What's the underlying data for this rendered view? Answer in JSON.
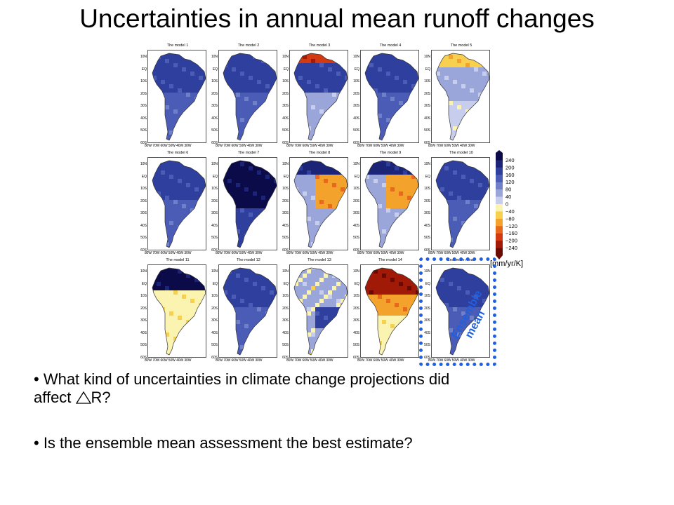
{
  "slide": {
    "title": "Uncertainties in annual mean runoff changes",
    "bullets": [
      "• What kind of uncertainties in climate change projections did affect ",
      "R?",
      "• Is the ensemble mean assessment the best estimate?"
    ]
  },
  "figure": {
    "panels": [
      {
        "title": "The model 1",
        "pattern": "wet"
      },
      {
        "title": "The model 2",
        "pattern": "wet"
      },
      {
        "title": "The model 3",
        "pattern": "mixed-north-dry"
      },
      {
        "title": "The model 4",
        "pattern": "wet"
      },
      {
        "title": "The model 5",
        "pattern": "north-dry"
      },
      {
        "title": "The model 6",
        "pattern": "wet"
      },
      {
        "title": "The model 7",
        "pattern": "very-wet"
      },
      {
        "title": "The model 8",
        "pattern": "center-dry"
      },
      {
        "title": "The model 9",
        "pattern": "center-dry"
      },
      {
        "title": "The model 10",
        "pattern": "wet"
      },
      {
        "title": "The model 11",
        "pattern": "north-wet-south-dry"
      },
      {
        "title": "The model 12",
        "pattern": "wet"
      },
      {
        "title": "The model 13",
        "pattern": "mild"
      },
      {
        "title": "The model 14",
        "pattern": "north-very-dry"
      },
      {
        "title": "Ensemble mean",
        "pattern": "wet"
      }
    ],
    "lat_ticks": [
      "10N",
      "EQ",
      "10S",
      "20S",
      "30S",
      "40S",
      "50S",
      "60S"
    ],
    "lon_ticks": "80W 70W 60W 50W 40W 30W",
    "colorbar": {
      "labels": [
        "240",
        "200",
        "160",
        "120",
        "80",
        "40",
        "0",
        "−40",
        "−80",
        "−120",
        "−160",
        "−200",
        "−240"
      ],
      "colors": [
        "#0b0b4a",
        "#1c2478",
        "#2f3f9e",
        "#4a5cb5",
        "#6f7fc8",
        "#9aa5da",
        "#c7cdec",
        "#fbf3b0",
        "#f7d04f",
        "#f3a22c",
        "#e8691c",
        "#d43a12",
        "#a11a08",
        "#6a0a02"
      ],
      "unit": "[mm/yr/K]"
    },
    "ensemble_label": [
      "Ensemble",
      "mean"
    ],
    "accent_color": "#1f5fe0"
  }
}
